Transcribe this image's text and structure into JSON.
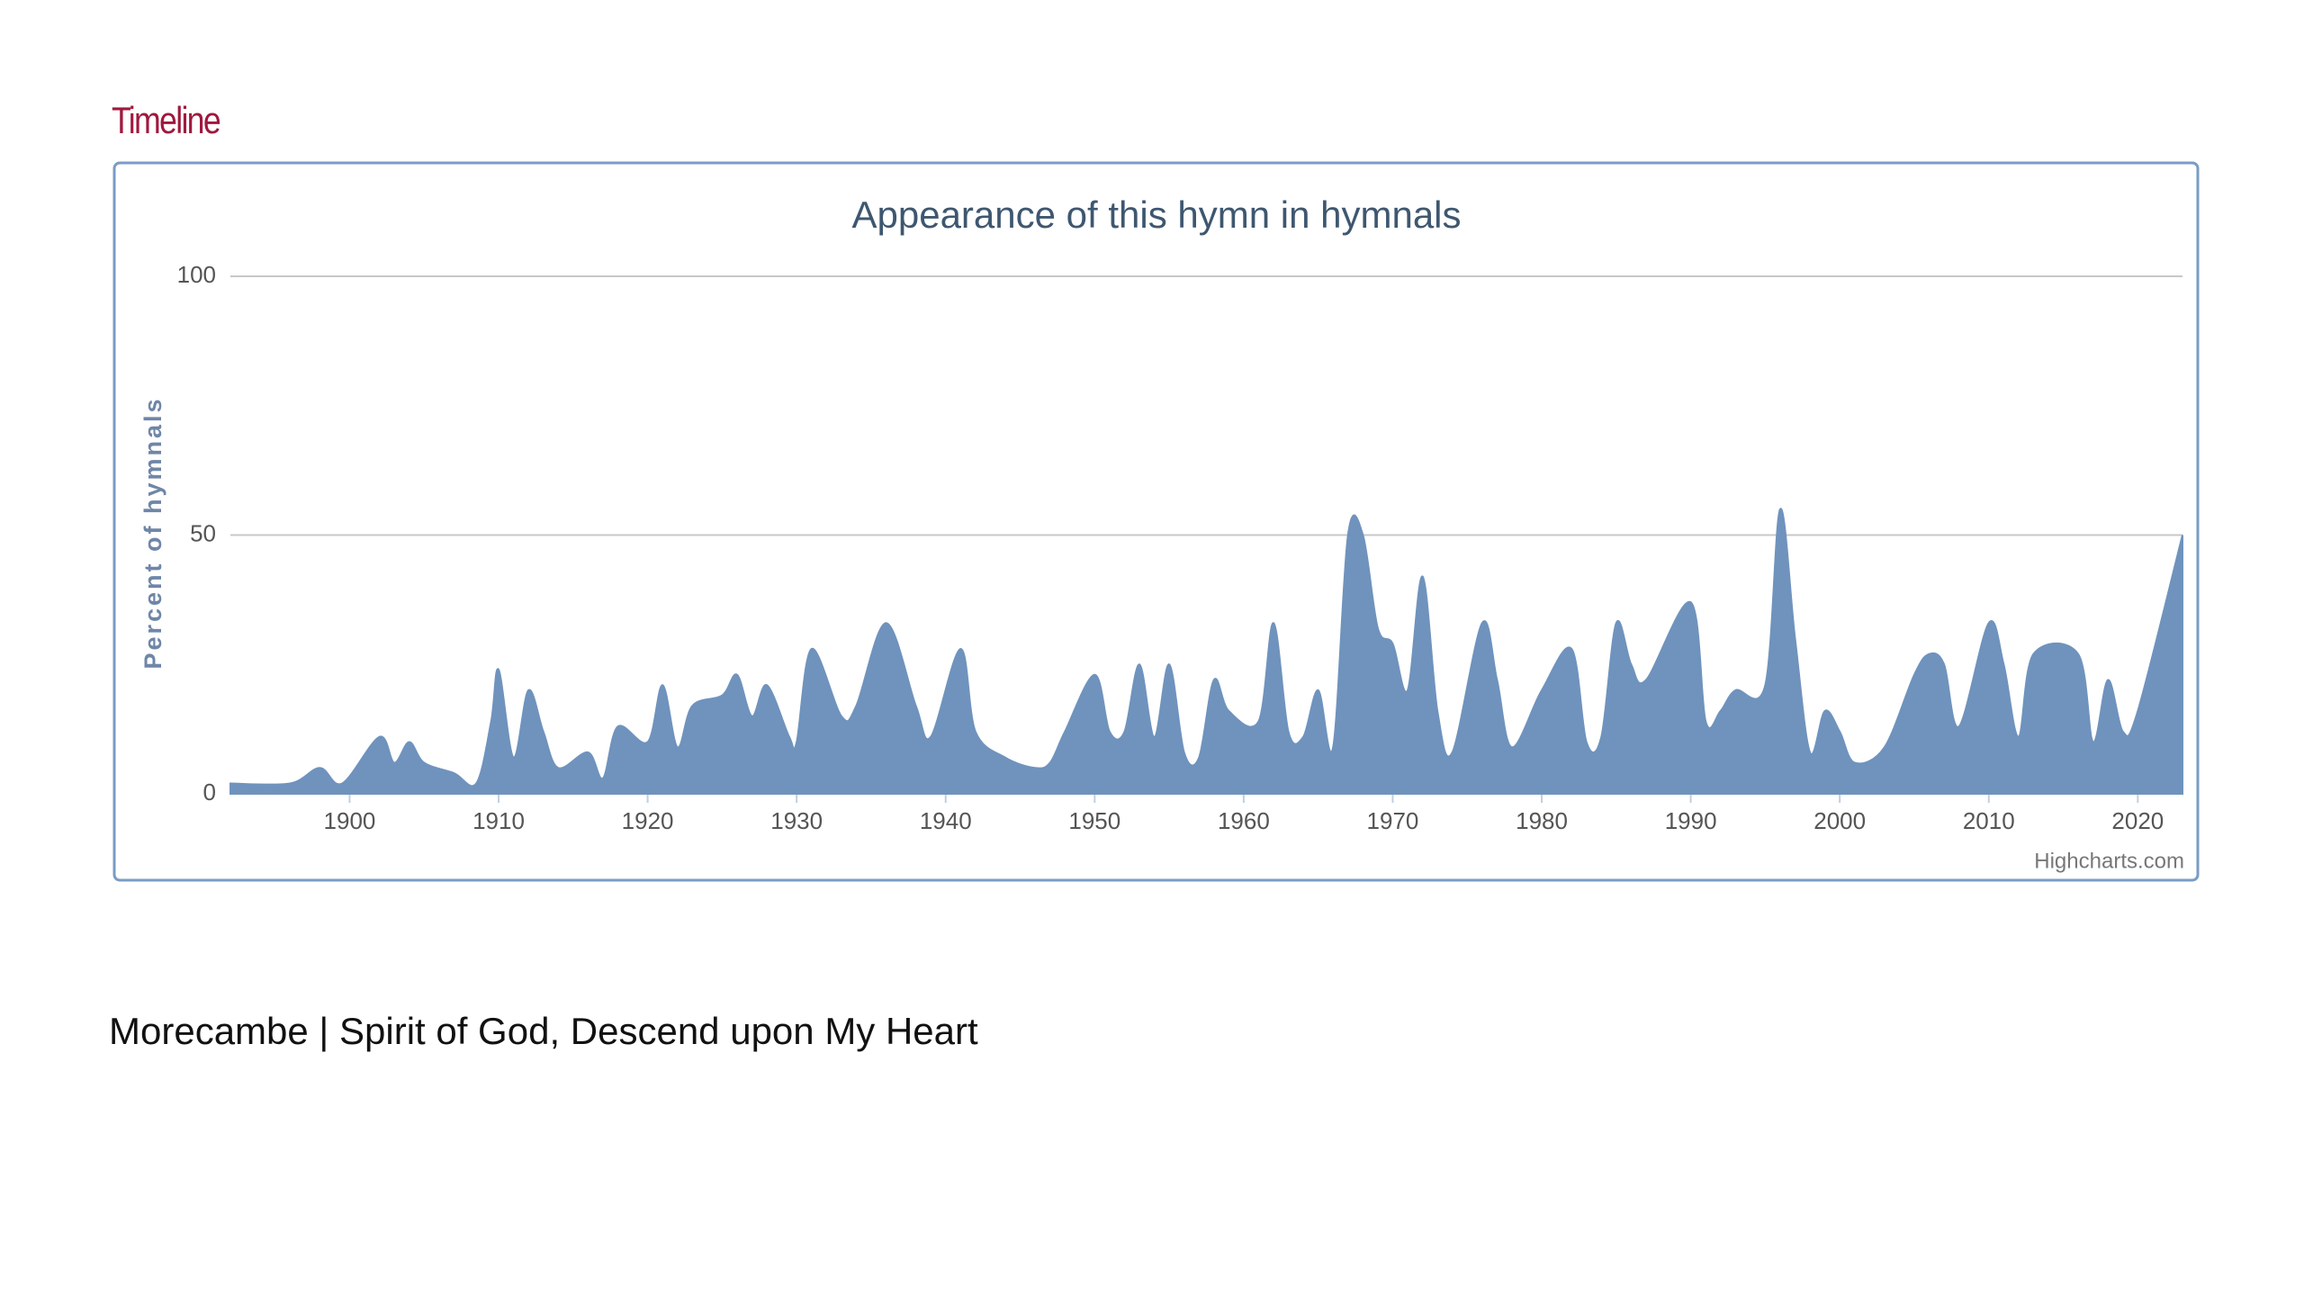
{
  "heading": "Timeline",
  "caption": "Morecambe | Spirit of God, Descend upon My Heart",
  "chart_data": {
    "type": "area",
    "title": "Appearance of this hymn in hymnals",
    "y_label": "Percent of hymnals",
    "credit": "Highcharts.com",
    "color": "#6f93bd",
    "grid": true,
    "xlim": [
      1892,
      2023
    ],
    "ylim": [
      0,
      100
    ],
    "xticks": [
      1900,
      1910,
      1920,
      1930,
      1940,
      1950,
      1960,
      1970,
      1980,
      1990,
      2000,
      2010,
      2020
    ],
    "yticks": [
      0,
      50,
      100
    ],
    "x": [
      1892,
      1896,
      1898,
      1899.5,
      1902,
      1903,
      1904,
      1905,
      1907,
      1908.5,
      1909.5,
      1910,
      1911,
      1912,
      1913,
      1914,
      1916,
      1917,
      1918,
      1920,
      1921,
      1922,
      1923,
      1925,
      1926,
      1927,
      1928,
      1929.5,
      1930,
      1931,
      1933,
      1934,
      1936,
      1938,
      1939,
      1941,
      1942,
      1944,
      1946,
      1947,
      1948,
      1950,
      1951,
      1952,
      1953,
      1954,
      1955,
      1956,
      1957,
      1958,
      1959,
      1961,
      1962,
      1963,
      1964,
      1965,
      1966,
      1967,
      1968,
      1969,
      1970,
      1971,
      1972,
      1973,
      1974,
      1976,
      1977,
      1978,
      1980,
      1982,
      1983,
      1984,
      1985,
      1986,
      1987,
      1990,
      1991,
      1992,
      1993,
      1995,
      1996,
      1997,
      1998,
      1999,
      2000,
      2001,
      2003,
      2005,
      2006,
      2007,
      2008,
      2010,
      2011,
      2012,
      2013,
      2016,
      2017,
      2018,
      2019,
      2020,
      2023
    ],
    "values": [
      2,
      2,
      5,
      2,
      11,
      6,
      10,
      6,
      4,
      2,
      14,
      24,
      7,
      20,
      12,
      5,
      8,
      3,
      13,
      10,
      21,
      9,
      17,
      19,
      23,
      15,
      21,
      11,
      10,
      28,
      15,
      17,
      33,
      17,
      11,
      28,
      12,
      7,
      5,
      6,
      12,
      23,
      12,
      12,
      25,
      11,
      25,
      8,
      7,
      22,
      16,
      14,
      33,
      12,
      11,
      20,
      9,
      50,
      50,
      32,
      29,
      20,
      42,
      16,
      8,
      33,
      22,
      9,
      20,
      28,
      10,
      11,
      33,
      25,
      22,
      37,
      14,
      16,
      20,
      21,
      55,
      30,
      8,
      16,
      12,
      6,
      9,
      23,
      27,
      25,
      13,
      33,
      25,
      11,
      27,
      27,
      10,
      22,
      12,
      16,
      50
    ]
  }
}
